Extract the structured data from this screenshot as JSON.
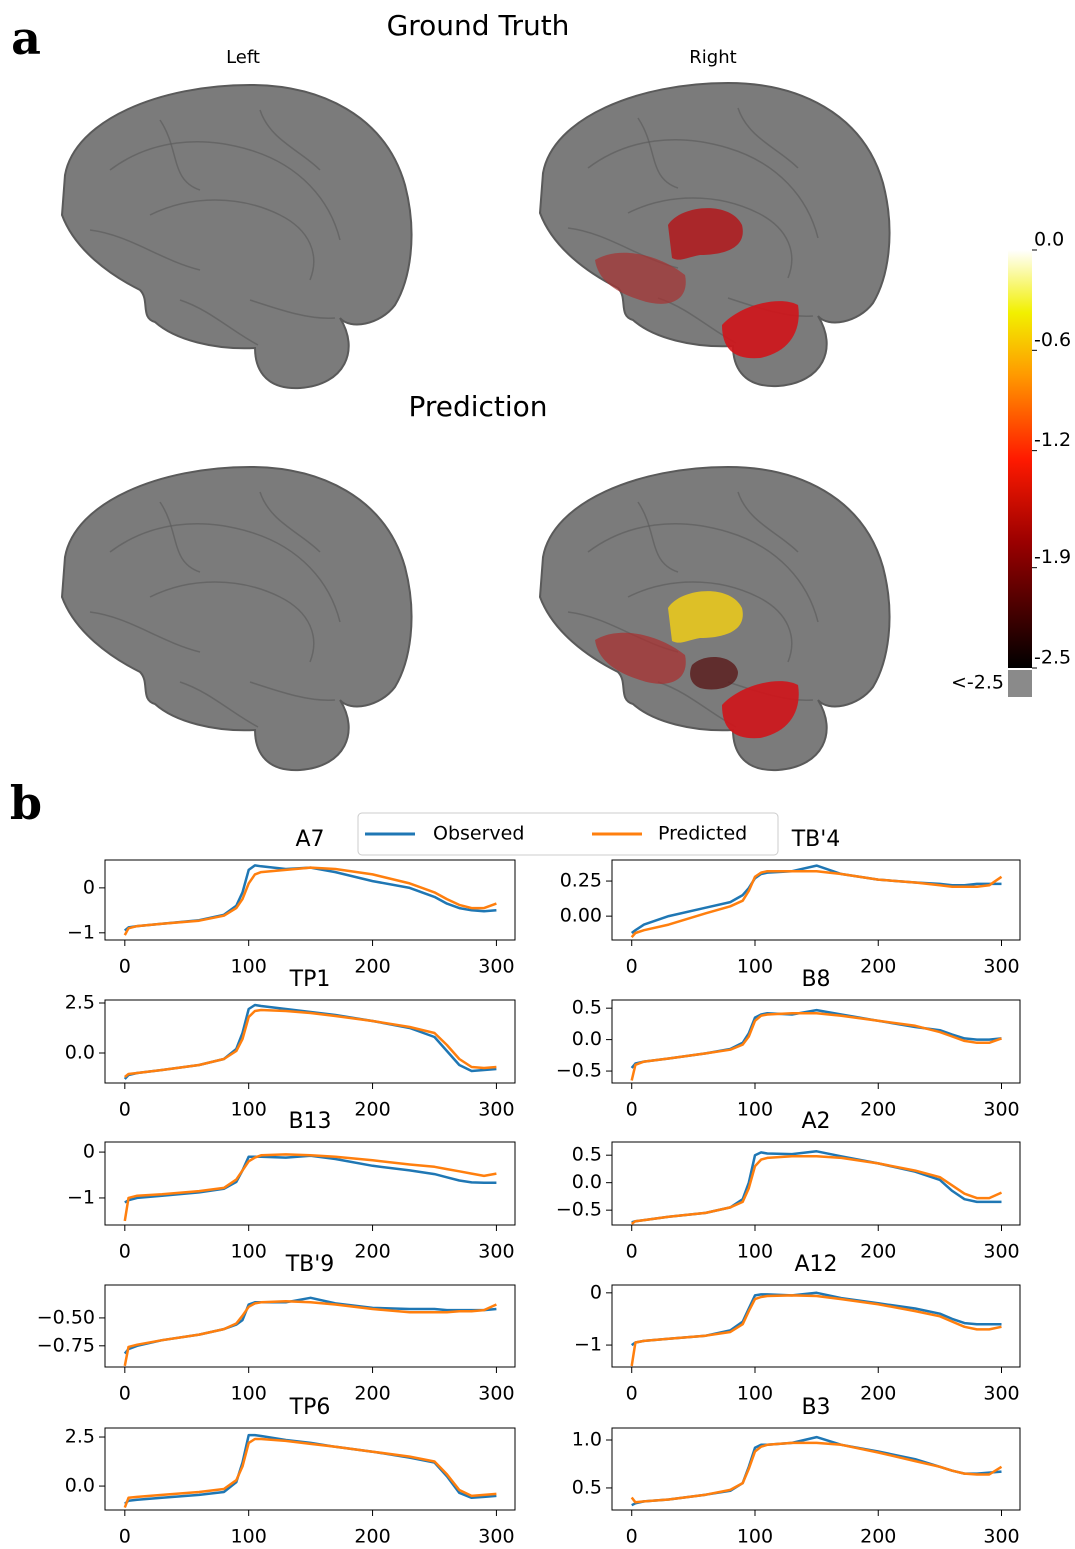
{
  "panel_a": {
    "letter": "a",
    "ground_truth_title": "Ground Truth",
    "prediction_title": "Prediction",
    "left_label": "Left",
    "right_label": "Right",
    "colorbar": {
      "clim": [
        -2.5,
        0
      ],
      "ticks": [
        {
          "value": 0,
          "label": "0.0"
        },
        -0.6,
        -1.2,
        -1.9,
        -2.5
      ],
      "under_label": "<-2.5"
    }
  },
  "panel_b_letter": "b",
  "chart_data": [
    {
      "type": "line",
      "title": "A7",
      "legend": "top",
      "x": [
        0,
        3,
        10,
        30,
        60,
        80,
        90,
        95,
        100,
        105,
        110,
        130,
        150,
        170,
        200,
        230,
        250,
        260,
        270,
        280,
        290,
        300
      ],
      "series": [
        {
          "name": "Observed",
          "color": "#1f77b4",
          "values": [
            -0.95,
            -0.88,
            -0.85,
            -0.8,
            -0.72,
            -0.6,
            -0.4,
            -0.1,
            0.4,
            0.5,
            0.48,
            0.42,
            0.45,
            0.35,
            0.15,
            0.0,
            -0.2,
            -0.35,
            -0.45,
            -0.5,
            -0.52,
            -0.5
          ]
        },
        {
          "name": "Predicted",
          "color": "#ff7f0e",
          "values": [
            -1.05,
            -0.9,
            -0.85,
            -0.8,
            -0.73,
            -0.62,
            -0.45,
            -0.25,
            0.1,
            0.3,
            0.35,
            0.4,
            0.45,
            0.42,
            0.3,
            0.1,
            -0.1,
            -0.25,
            -0.38,
            -0.45,
            -0.45,
            -0.35
          ]
        }
      ],
      "xlim": [
        -16,
        315
      ],
      "xticks": [
        0,
        100,
        200,
        300
      ],
      "ylim": [
        -1.16,
        0.62
      ],
      "yticks": [
        0,
        {
          "value": -1,
          "label": "−1"
        }
      ]
    },
    {
      "type": "line",
      "title": "TB'4",
      "x": [
        0,
        3,
        10,
        30,
        60,
        80,
        90,
        95,
        100,
        105,
        110,
        130,
        150,
        170,
        200,
        230,
        250,
        260,
        270,
        280,
        290,
        300
      ],
      "series": [
        {
          "color": "#1f77b4",
          "values": [
            -0.12,
            -0.1,
            -0.06,
            0.0,
            0.06,
            0.1,
            0.15,
            0.2,
            0.27,
            0.3,
            0.31,
            0.32,
            0.36,
            0.3,
            0.26,
            0.24,
            0.23,
            0.22,
            0.22,
            0.23,
            0.23,
            0.23
          ]
        },
        {
          "color": "#ff7f0e",
          "values": [
            -0.15,
            -0.12,
            -0.1,
            -0.06,
            0.02,
            0.07,
            0.11,
            0.18,
            0.28,
            0.31,
            0.32,
            0.32,
            0.32,
            0.3,
            0.26,
            0.24,
            0.22,
            0.21,
            0.21,
            0.21,
            0.22,
            0.28
          ]
        }
      ],
      "xlim": [
        -16,
        315
      ],
      "xticks": [
        0,
        100,
        200,
        300
      ],
      "ylim": [
        -0.17,
        0.4
      ],
      "yticks": [
        0.25,
        {
          "value": 0,
          "label": "0.00"
        }
      ]
    },
    {
      "type": "line",
      "title": "TP1",
      "x": [
        0,
        3,
        10,
        30,
        60,
        80,
        90,
        95,
        100,
        105,
        110,
        130,
        150,
        170,
        200,
        230,
        250,
        260,
        270,
        280,
        290,
        300
      ],
      "series": [
        {
          "color": "#1f77b4",
          "values": [
            -1.3,
            -1.1,
            -1.0,
            -0.85,
            -0.6,
            -0.3,
            0.2,
            1.0,
            2.2,
            2.4,
            2.35,
            2.2,
            2.05,
            1.9,
            1.6,
            1.25,
            0.8,
            0.1,
            -0.6,
            -0.9,
            -0.85,
            -0.8
          ]
        },
        {
          "color": "#ff7f0e",
          "values": [
            -1.2,
            -1.05,
            -1.0,
            -0.85,
            -0.6,
            -0.3,
            0.1,
            0.7,
            1.8,
            2.1,
            2.15,
            2.1,
            2.0,
            1.85,
            1.6,
            1.3,
            1.0,
            0.4,
            -0.3,
            -0.7,
            -0.75,
            -0.7
          ]
        }
      ],
      "xlim": [
        -16,
        315
      ],
      "xticks": [
        0,
        100,
        200,
        300
      ],
      "ylim": [
        -1.5,
        2.65
      ],
      "yticks": [
        2.5,
        {
          "value": 0,
          "label": "0.0"
        }
      ]
    },
    {
      "type": "line",
      "title": "B8",
      "x": [
        0,
        3,
        10,
        30,
        60,
        80,
        90,
        95,
        100,
        105,
        110,
        130,
        150,
        170,
        200,
        230,
        250,
        260,
        270,
        280,
        290,
        300
      ],
      "series": [
        {
          "color": "#1f77b4",
          "values": [
            -0.45,
            -0.38,
            -0.35,
            -0.3,
            -0.22,
            -0.15,
            -0.05,
            0.1,
            0.35,
            0.4,
            0.42,
            0.4,
            0.47,
            0.4,
            0.3,
            0.2,
            0.15,
            0.08,
            0.02,
            0.0,
            0.0,
            0.02
          ]
        },
        {
          "color": "#ff7f0e",
          "values": [
            -0.65,
            -0.4,
            -0.35,
            -0.3,
            -0.22,
            -0.16,
            -0.08,
            0.05,
            0.3,
            0.38,
            0.4,
            0.42,
            0.42,
            0.38,
            0.3,
            0.22,
            0.12,
            0.05,
            -0.02,
            -0.05,
            -0.05,
            0.02
          ]
        }
      ],
      "xlim": [
        -16,
        315
      ],
      "xticks": [
        0,
        100,
        200,
        300
      ],
      "ylim": [
        -0.69,
        0.63
      ],
      "yticks": [
        0.5,
        {
          "value": 0,
          "label": "0.0"
        },
        {
          "value": -0.5,
          "label": "−0.5"
        }
      ]
    },
    {
      "type": "line",
      "title": "B13",
      "x": [
        0,
        3,
        10,
        30,
        60,
        80,
        90,
        95,
        100,
        105,
        110,
        130,
        150,
        170,
        200,
        230,
        250,
        260,
        270,
        280,
        290,
        300
      ],
      "series": [
        {
          "color": "#1f77b4",
          "values": [
            -1.1,
            -1.05,
            -1.0,
            -0.95,
            -0.88,
            -0.8,
            -0.65,
            -0.4,
            -0.1,
            -0.1,
            -0.1,
            -0.12,
            -0.08,
            -0.15,
            -0.3,
            -0.4,
            -0.48,
            -0.55,
            -0.62,
            -0.66,
            -0.67,
            -0.67
          ]
        },
        {
          "color": "#ff7f0e",
          "values": [
            -1.5,
            -1.0,
            -0.95,
            -0.92,
            -0.85,
            -0.78,
            -0.6,
            -0.4,
            -0.2,
            -0.12,
            -0.07,
            -0.05,
            -0.07,
            -0.1,
            -0.18,
            -0.27,
            -0.32,
            -0.37,
            -0.42,
            -0.47,
            -0.52,
            -0.47
          ]
        }
      ],
      "xlim": [
        -16,
        315
      ],
      "xticks": [
        0,
        100,
        200,
        300
      ],
      "ylim": [
        -1.59,
        0.22
      ],
      "yticks": [
        0,
        {
          "value": -1,
          "label": "−1"
        }
      ]
    },
    {
      "type": "line",
      "title": "A2",
      "x": [
        0,
        3,
        10,
        30,
        60,
        80,
        90,
        95,
        100,
        105,
        110,
        130,
        150,
        170,
        200,
        230,
        250,
        260,
        270,
        280,
        290,
        300
      ],
      "series": [
        {
          "color": "#1f77b4",
          "values": [
            -0.72,
            -0.7,
            -0.68,
            -0.62,
            -0.55,
            -0.45,
            -0.3,
            0.0,
            0.5,
            0.55,
            0.53,
            0.52,
            0.57,
            0.48,
            0.35,
            0.2,
            0.05,
            -0.15,
            -0.3,
            -0.35,
            -0.35,
            -0.35
          ]
        },
        {
          "color": "#ff7f0e",
          "values": [
            -0.75,
            -0.7,
            -0.68,
            -0.62,
            -0.55,
            -0.45,
            -0.35,
            -0.1,
            0.3,
            0.42,
            0.45,
            0.48,
            0.48,
            0.45,
            0.35,
            0.22,
            0.1,
            -0.05,
            -0.2,
            -0.28,
            -0.28,
            -0.18
          ]
        }
      ],
      "xlim": [
        -16,
        315
      ],
      "xticks": [
        0,
        100,
        200,
        300
      ],
      "ylim": [
        -0.77,
        0.74
      ],
      "yticks": [
        0.5,
        {
          "value": 0,
          "label": "0.0"
        },
        {
          "value": -0.5,
          "label": "−0.5"
        }
      ]
    },
    {
      "type": "line",
      "title": "TB'9",
      "x": [
        0,
        3,
        10,
        30,
        60,
        80,
        90,
        95,
        100,
        105,
        110,
        130,
        150,
        170,
        200,
        230,
        250,
        260,
        270,
        280,
        290,
        300
      ],
      "series": [
        {
          "color": "#1f77b4",
          "values": [
            -0.82,
            -0.78,
            -0.75,
            -0.7,
            -0.65,
            -0.6,
            -0.56,
            -0.52,
            -0.38,
            -0.36,
            -0.36,
            -0.36,
            -0.32,
            -0.37,
            -0.41,
            -0.42,
            -0.42,
            -0.43,
            -0.43,
            -0.43,
            -0.43,
            -0.42
          ]
        },
        {
          "color": "#ff7f0e",
          "values": [
            -0.93,
            -0.76,
            -0.74,
            -0.7,
            -0.65,
            -0.6,
            -0.55,
            -0.48,
            -0.4,
            -0.37,
            -0.36,
            -0.35,
            -0.36,
            -0.38,
            -0.42,
            -0.45,
            -0.45,
            -0.45,
            -0.44,
            -0.44,
            -0.43,
            -0.38
          ]
        }
      ],
      "xlim": [
        -16,
        315
      ],
      "xticks": [
        0,
        100,
        200,
        300
      ],
      "ylim": [
        -0.94,
        -0.205
      ],
      "yticks": [
        {
          "value": -0.5,
          "label": "−0.50"
        },
        {
          "value": -0.75,
          "label": "−0.75"
        }
      ]
    },
    {
      "type": "line",
      "title": "A12",
      "x": [
        0,
        3,
        10,
        30,
        60,
        80,
        90,
        95,
        100,
        105,
        110,
        130,
        150,
        170,
        200,
        230,
        250,
        260,
        270,
        280,
        290,
        300
      ],
      "series": [
        {
          "color": "#1f77b4",
          "values": [
            -1.0,
            -0.95,
            -0.92,
            -0.88,
            -0.82,
            -0.72,
            -0.55,
            -0.3,
            -0.05,
            -0.03,
            -0.03,
            -0.05,
            0.0,
            -0.1,
            -0.2,
            -0.3,
            -0.4,
            -0.5,
            -0.58,
            -0.6,
            -0.6,
            -0.6
          ]
        },
        {
          "color": "#ff7f0e",
          "values": [
            -1.4,
            -0.95,
            -0.92,
            -0.88,
            -0.82,
            -0.75,
            -0.6,
            -0.35,
            -0.12,
            -0.08,
            -0.06,
            -0.05,
            -0.06,
            -0.12,
            -0.22,
            -0.35,
            -0.45,
            -0.55,
            -0.65,
            -0.7,
            -0.7,
            -0.65
          ]
        }
      ],
      "xlim": [
        -16,
        315
      ],
      "xticks": [
        0,
        100,
        200,
        300
      ],
      "ylim": [
        -1.42,
        0.15
      ],
      "yticks": [
        0,
        {
          "value": -1,
          "label": "−1"
        }
      ]
    },
    {
      "type": "line",
      "title": "TP6",
      "x": [
        0,
        3,
        10,
        30,
        60,
        80,
        90,
        95,
        100,
        105,
        110,
        130,
        150,
        170,
        200,
        230,
        250,
        260,
        270,
        280,
        290,
        300
      ],
      "series": [
        {
          "color": "#1f77b4",
          "values": [
            -0.9,
            -0.75,
            -0.7,
            -0.6,
            -0.45,
            -0.3,
            0.2,
            1.2,
            2.6,
            2.6,
            2.55,
            2.35,
            2.2,
            2.0,
            1.75,
            1.45,
            1.2,
            0.5,
            -0.35,
            -0.6,
            -0.55,
            -0.5
          ]
        },
        {
          "color": "#ff7f0e",
          "values": [
            -1.1,
            -0.6,
            -0.55,
            -0.45,
            -0.3,
            -0.15,
            0.3,
            1.0,
            2.2,
            2.4,
            2.4,
            2.3,
            2.15,
            2.0,
            1.75,
            1.5,
            1.25,
            0.6,
            -0.2,
            -0.5,
            -0.45,
            -0.4
          ]
        }
      ],
      "xlim": [
        -16,
        315
      ],
      "xticks": [
        0,
        100,
        200,
        300
      ],
      "ylim": [
        -1.22,
        2.96
      ],
      "yticks": [
        2.5,
        {
          "value": 0,
          "label": "0.0"
        }
      ]
    },
    {
      "type": "line",
      "title": "B3",
      "x": [
        0,
        3,
        10,
        30,
        60,
        80,
        90,
        95,
        100,
        105,
        110,
        130,
        150,
        170,
        200,
        230,
        250,
        260,
        270,
        280,
        290,
        300
      ],
      "series": [
        {
          "color": "#1f77b4",
          "values": [
            0.32,
            0.34,
            0.36,
            0.38,
            0.43,
            0.47,
            0.55,
            0.72,
            0.92,
            0.95,
            0.95,
            0.97,
            1.03,
            0.95,
            0.88,
            0.8,
            0.72,
            0.68,
            0.65,
            0.65,
            0.66,
            0.67
          ]
        },
        {
          "color": "#ff7f0e",
          "values": [
            0.4,
            0.35,
            0.36,
            0.38,
            0.43,
            0.48,
            0.55,
            0.7,
            0.88,
            0.93,
            0.95,
            0.97,
            0.97,
            0.95,
            0.87,
            0.78,
            0.72,
            0.68,
            0.65,
            0.64,
            0.64,
            0.72
          ]
        }
      ],
      "xlim": [
        -16,
        315
      ],
      "xticks": [
        0,
        100,
        200,
        300
      ],
      "ylim": [
        0.27,
        1.125
      ],
      "yticks": [
        {
          "value": 1,
          "label": "1.0"
        },
        0.5
      ]
    }
  ]
}
